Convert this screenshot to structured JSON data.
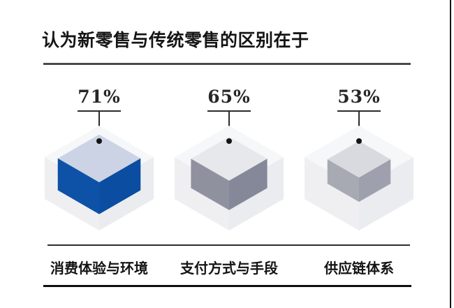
{
  "page": {
    "background": "#ffffff",
    "right_edge_line_color": "#161616"
  },
  "header": {
    "title": "认为新零售与传统零售的区别在于",
    "divider_color": "#4a4a4a"
  },
  "chart_data": {
    "type": "bar",
    "variant": "isometric-cube-pictogram",
    "title": "认为新零售与传统零售的区别在于",
    "categories": [
      "消费体验与环境",
      "支付方式与手段",
      "供应链体系"
    ],
    "values": [
      71,
      65,
      53
    ],
    "unit": "%",
    "value_labels": [
      "71%",
      "65%",
      "53%"
    ],
    "legend": false,
    "grid": false,
    "layout_hint": "three cubes in a row; inner cube size proportional to value; callout line with dot from each cube top to its percentage label"
  },
  "cube_shell": {
    "top": "#f6f7f9",
    "left": "#efeff2",
    "right": "#ebecef"
  },
  "items": [
    {
      "pct_label": "71%",
      "value": 71,
      "label": "消费体验与环境",
      "cube": {
        "top": "#ccd3e4",
        "left": "#0d52a6",
        "right": "#0b4da0"
      }
    },
    {
      "pct_label": "65%",
      "value": 65,
      "label": "支付方式与手段",
      "cube": {
        "top": "#e7e8eb",
        "left": "#8f929e",
        "right": "#848899"
      }
    },
    {
      "pct_label": "53%",
      "value": 53,
      "label": "供应链体系",
      "cube": {
        "top": "#d9dadf",
        "left": "#a8aab3",
        "right": "#9ea1ad"
      }
    }
  ],
  "footer": {
    "top_rule_color": "#2e2e2e",
    "bottom_rule_color": "#0f0f0f"
  }
}
